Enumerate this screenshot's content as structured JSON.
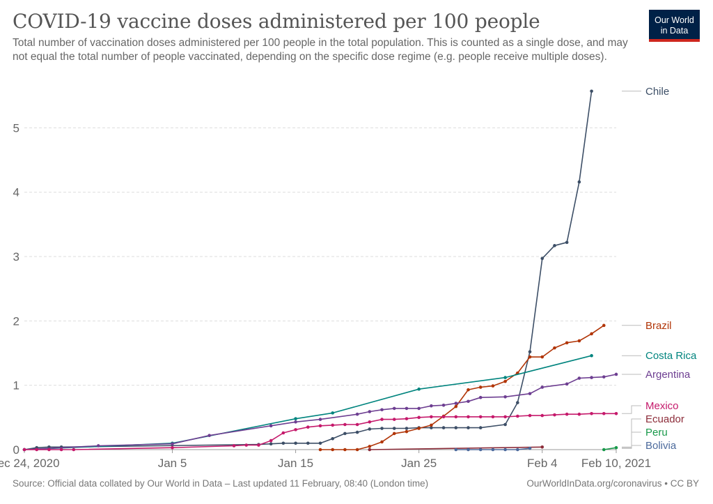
{
  "header": {
    "title": "COVID-19 vaccine doses administered per 100 people",
    "subtitle": "Total number of vaccination doses administered per 100 people in the total population. This is counted as a single dose, and may not equal the total number of people vaccinated, depending on the specific dose regime (e.g. people receive multiple doses)."
  },
  "logo": {
    "line1": "Our World",
    "line2": "in Data",
    "bg": "#002147",
    "accent": "#ce261e"
  },
  "footer": {
    "source": "Source: Official data collated by Our World in Data – Last updated 11 February, 08:40 (London time)",
    "credit": "OurWorldInData.org/coronavirus • CC BY"
  },
  "chart_data": {
    "type": "line",
    "title": "COVID-19 vaccine doses administered per 100 people",
    "x_start": "2020-12-24",
    "x_end": "2021-02-10",
    "x_ticks": [
      {
        "date": "2020-12-24",
        "label": "Dec 24, 2020"
      },
      {
        "date": "2021-01-05",
        "label": "Jan 5"
      },
      {
        "date": "2021-01-15",
        "label": "Jan 15"
      },
      {
        "date": "2021-01-25",
        "label": "Jan 25"
      },
      {
        "date": "2021-02-04",
        "label": "Feb 4"
      },
      {
        "date": "2021-02-10",
        "label": "Feb 10, 2021"
      }
    ],
    "y_ticks": [
      0,
      1,
      2,
      3,
      4,
      5
    ],
    "ylim": [
      0,
      5.6
    ],
    "grid": "horizontal dashed",
    "legend": "right end labels",
    "series": [
      {
        "name": "Chile",
        "color": "#3c4e66",
        "points": [
          [
            "2020-12-24",
            0.0
          ],
          [
            "2020-12-25",
            0.03
          ],
          [
            "2020-12-26",
            0.04
          ],
          [
            "2020-12-27",
            0.04
          ],
          [
            "2021-01-12",
            0.08
          ],
          [
            "2021-01-13",
            0.09
          ],
          [
            "2021-01-14",
            0.1
          ],
          [
            "2021-01-15",
            0.1
          ],
          [
            "2021-01-16",
            0.1
          ],
          [
            "2021-01-17",
            0.1
          ],
          [
            "2021-01-18",
            0.17
          ],
          [
            "2021-01-19",
            0.25
          ],
          [
            "2021-01-20",
            0.27
          ],
          [
            "2021-01-21",
            0.32
          ],
          [
            "2021-01-22",
            0.33
          ],
          [
            "2021-01-23",
            0.33
          ],
          [
            "2021-01-24",
            0.33
          ],
          [
            "2021-01-25",
            0.34
          ],
          [
            "2021-01-26",
            0.34
          ],
          [
            "2021-01-27",
            0.34
          ],
          [
            "2021-01-28",
            0.34
          ],
          [
            "2021-01-29",
            0.34
          ],
          [
            "2021-01-30",
            0.34
          ],
          [
            "2021-02-01",
            0.39
          ],
          [
            "2021-02-02",
            0.73
          ],
          [
            "2021-02-03",
            1.52
          ],
          [
            "2021-02-04",
            2.97
          ],
          [
            "2021-02-05",
            3.17
          ],
          [
            "2021-02-06",
            3.22
          ],
          [
            "2021-02-07",
            4.16
          ],
          [
            "2021-02-08",
            5.57
          ]
        ]
      },
      {
        "name": "Brazil",
        "color": "#b13507",
        "points": [
          [
            "2021-01-17",
            0.0
          ],
          [
            "2021-01-18",
            0.0
          ],
          [
            "2021-01-19",
            0.0
          ],
          [
            "2021-01-20",
            0.0
          ],
          [
            "2021-01-21",
            0.05
          ],
          [
            "2021-01-22",
            0.12
          ],
          [
            "2021-01-23",
            0.25
          ],
          [
            "2021-01-24",
            0.28
          ],
          [
            "2021-01-25",
            0.33
          ],
          [
            "2021-01-26",
            0.38
          ],
          [
            "2021-01-27",
            0.52
          ],
          [
            "2021-01-28",
            0.67
          ],
          [
            "2021-01-29",
            0.93
          ],
          [
            "2021-01-30",
            0.97
          ],
          [
            "2021-01-31",
            0.99
          ],
          [
            "2021-02-01",
            1.06
          ],
          [
            "2021-02-02",
            1.19
          ],
          [
            "2021-02-03",
            1.44
          ],
          [
            "2021-02-04",
            1.44
          ],
          [
            "2021-02-05",
            1.58
          ],
          [
            "2021-02-06",
            1.66
          ],
          [
            "2021-02-07",
            1.69
          ],
          [
            "2021-02-08",
            1.8
          ],
          [
            "2021-02-09",
            1.93
          ]
        ]
      },
      {
        "name": "Costa Rica",
        "color": "#00847e",
        "points": [
          [
            "2020-12-24",
            0.0
          ],
          [
            "2021-01-05",
            0.1
          ],
          [
            "2021-01-15",
            0.48
          ],
          [
            "2021-01-18",
            0.57
          ],
          [
            "2021-01-25",
            0.94
          ],
          [
            "2021-02-01",
            1.12
          ],
          [
            "2021-02-08",
            1.46
          ]
        ]
      },
      {
        "name": "Argentina",
        "color": "#6d3e91",
        "points": [
          [
            "2020-12-24",
            0.0
          ],
          [
            "2020-12-30",
            0.06
          ],
          [
            "2021-01-05",
            0.09
          ],
          [
            "2021-01-08",
            0.22
          ],
          [
            "2021-01-13",
            0.37
          ],
          [
            "2021-01-15",
            0.43
          ],
          [
            "2021-01-17",
            0.47
          ],
          [
            "2021-01-20",
            0.55
          ],
          [
            "2021-01-21",
            0.59
          ],
          [
            "2021-01-22",
            0.62
          ],
          [
            "2021-01-23",
            0.64
          ],
          [
            "2021-01-24",
            0.64
          ],
          [
            "2021-01-25",
            0.64
          ],
          [
            "2021-01-26",
            0.68
          ],
          [
            "2021-01-27",
            0.69
          ],
          [
            "2021-01-28",
            0.72
          ],
          [
            "2021-01-29",
            0.75
          ],
          [
            "2021-01-30",
            0.81
          ],
          [
            "2021-02-01",
            0.82
          ],
          [
            "2021-02-03",
            0.87
          ],
          [
            "2021-02-04",
            0.97
          ],
          [
            "2021-02-06",
            1.02
          ],
          [
            "2021-02-07",
            1.11
          ],
          [
            "2021-02-08",
            1.12
          ],
          [
            "2021-02-09",
            1.13
          ],
          [
            "2021-02-10",
            1.17
          ]
        ]
      },
      {
        "name": "Mexico",
        "color": "#c5196b",
        "points": [
          [
            "2020-12-24",
            0.0
          ],
          [
            "2020-12-25",
            0.0
          ],
          [
            "2020-12-26",
            0.0
          ],
          [
            "2020-12-27",
            0.0
          ],
          [
            "2020-12-28",
            0.0
          ],
          [
            "2021-01-05",
            0.03
          ],
          [
            "2021-01-10",
            0.06
          ],
          [
            "2021-01-11",
            0.07
          ],
          [
            "2021-01-12",
            0.07
          ],
          [
            "2021-01-13",
            0.14
          ],
          [
            "2021-01-14",
            0.26
          ],
          [
            "2021-01-15",
            0.31
          ],
          [
            "2021-01-16",
            0.35
          ],
          [
            "2021-01-17",
            0.37
          ],
          [
            "2021-01-18",
            0.38
          ],
          [
            "2021-01-19",
            0.39
          ],
          [
            "2021-01-20",
            0.39
          ],
          [
            "2021-01-21",
            0.43
          ],
          [
            "2021-01-22",
            0.47
          ],
          [
            "2021-01-23",
            0.47
          ],
          [
            "2021-01-24",
            0.48
          ],
          [
            "2021-01-25",
            0.5
          ],
          [
            "2021-01-26",
            0.51
          ],
          [
            "2021-01-27",
            0.51
          ],
          [
            "2021-01-28",
            0.51
          ],
          [
            "2021-01-29",
            0.51
          ],
          [
            "2021-01-30",
            0.51
          ],
          [
            "2021-01-31",
            0.51
          ],
          [
            "2021-02-01",
            0.51
          ],
          [
            "2021-02-02",
            0.52
          ],
          [
            "2021-02-03",
            0.53
          ],
          [
            "2021-02-04",
            0.53
          ],
          [
            "2021-02-05",
            0.54
          ],
          [
            "2021-02-06",
            0.55
          ],
          [
            "2021-02-07",
            0.55
          ],
          [
            "2021-02-08",
            0.56
          ],
          [
            "2021-02-09",
            0.56
          ],
          [
            "2021-02-10",
            0.56
          ]
        ]
      },
      {
        "name": "Ecuador",
        "color": "#8c2c39",
        "points": [
          [
            "2021-01-21",
            0.0
          ],
          [
            "2021-02-04",
            0.04
          ]
        ]
      },
      {
        "name": "Peru",
        "color": "#18994a",
        "points": [
          [
            "2021-02-09",
            0.0
          ],
          [
            "2021-02-10",
            0.03
          ]
        ]
      },
      {
        "name": "Bolivia",
        "color": "#4c6a9c",
        "points": [
          [
            "2021-01-28",
            0.0
          ],
          [
            "2021-01-29",
            0.0
          ],
          [
            "2021-01-30",
            0.0
          ],
          [
            "2021-01-31",
            0.0
          ],
          [
            "2021-02-01",
            0.0
          ],
          [
            "2021-02-02",
            0.0
          ],
          [
            "2021-02-03",
            0.02
          ]
        ]
      }
    ]
  }
}
